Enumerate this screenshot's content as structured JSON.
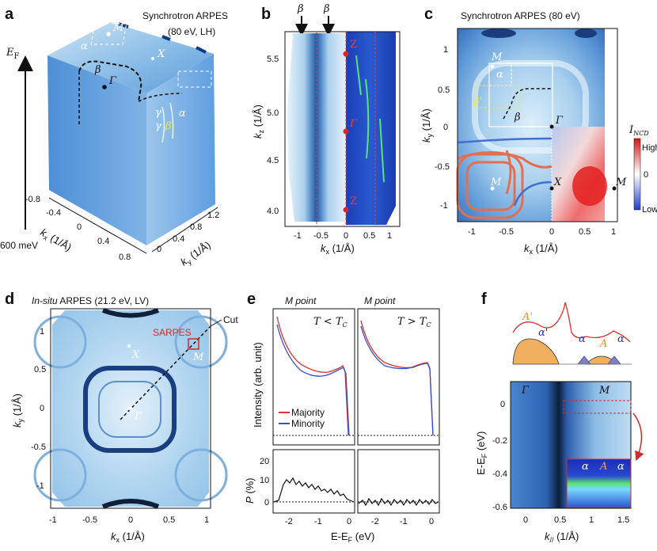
{
  "panel_letters": {
    "a": "a",
    "b": "b",
    "c": "c",
    "d": "d",
    "e": "e",
    "f": "f"
  },
  "panel_a": {
    "title": "Synchrotron ARPES",
    "subtitle": "(80 eV, LH)",
    "energy_top": "E",
    "energy_top_sub": "F",
    "energy_bottom": "600 meV",
    "kx_label": "k",
    "kx_sub": "x",
    "kx_unit": " (1/Å)",
    "ky_label": "k",
    "ky_sub": "y",
    "ky_unit": " (1/Å)",
    "kx_ticks": [
      "-0.8",
      "-0.4",
      "0",
      "0.4",
      "0.8"
    ],
    "ky_ticks": [
      "0",
      "0.4",
      "0.8",
      "1.2"
    ],
    "sym_M": "M",
    "sym_X": "X",
    "sym_G": "Γ",
    "band_alpha": "α",
    "band_beta": "β",
    "band_gamma": "γ",
    "band_gamma2": "γ",
    "band_alpha2": "α",
    "band_beta_prime": "β'"
  },
  "panel_b": {
    "top_label_1": "β",
    "top_label_2": "β",
    "ylabel": "k",
    "ylabel_sub": "z",
    "yunit": " (1/Å)",
    "xlabel": "k",
    "xlabel_sub": "x",
    "xunit": " (1/Å)",
    "yticks": [
      "5.5",
      "5.0",
      "4.5",
      "4.0"
    ],
    "xticks": [
      "-1",
      "-0.5",
      "0",
      "0.5",
      "1"
    ],
    "z_label": "Z",
    "g_label": "Γ"
  },
  "panel_c": {
    "title": "Synchrotron ARPES (80 eV)",
    "ylabel": "k",
    "ylabel_sub": "y",
    "yunit": " (1/Å)",
    "xlabel": "k",
    "xlabel_sub": "x",
    "xunit": " (1/Å)",
    "yticks": [
      "1",
      "0.5",
      "0",
      "-0.5",
      "-1"
    ],
    "xticks": [
      "-1",
      "-0.5",
      "0",
      "0.5",
      "1"
    ],
    "sym_M": "M",
    "sym_G": "Γ",
    "sym_X": "X",
    "sym_M2": "M",
    "sym_M3": "M",
    "band_alpha": "α",
    "band_beta_prime": "β'",
    "band_beta": "β",
    "cbar_title": "I",
    "cbar_title_sub": "NCD",
    "cbar_high": "High",
    "cbar_mid": "0",
    "cbar_low": "Low"
  },
  "panel_d": {
    "title_italic": "In-situ",
    "title_rest": " ARPES (21.2 eV, LV)",
    "ylabel": "k",
    "ylabel_sub": "y",
    "yunit": " (1/Å)",
    "xlabel": "k",
    "xlabel_sub": "x",
    "xunit": " (1/Å)",
    "yticks": [
      "1",
      "0.5",
      "0",
      "-0.5",
      "-1"
    ],
    "xticks": [
      "-1",
      "-0.5",
      "0",
      "0.5",
      "1"
    ],
    "sarpes": "SARPES",
    "cut": "Cut",
    "sym_X": "X",
    "sym_M": "M",
    "sym_G": "Γ"
  },
  "panel_e": {
    "left_title": "M point",
    "right_title": "M point",
    "left_cond": "T < T",
    "left_cond_sub": "C",
    "right_cond": "T > T",
    "right_cond_sub": "C",
    "ylabel_top": "Intensity (arb. unit)",
    "ylabel_bottom_i": "P",
    "ylabel_bottom": " (%)",
    "xlabel": "E-E",
    "xlabel_sub": "F",
    "xunit": " (eV)",
    "legend": [
      "Majority",
      "Minority"
    ],
    "legend_colors": [
      "#e03030",
      "#3050d0"
    ],
    "p_yticks": [
      "20",
      "10",
      "0"
    ],
    "xticks_left": [
      "-2",
      "-1",
      "0"
    ],
    "xticks_right": [
      "-2",
      "-1",
      "0"
    ]
  },
  "panel_f": {
    "peak_A_prime": "A'",
    "peak_alpha_prime": "α'",
    "peak_alpha_1": "α",
    "peak_A": "A",
    "peak_alpha_2": "α",
    "sym_G": "Γ",
    "sym_M": "M",
    "ylabel": "E-E",
    "ylabel_sub": "F",
    "yunit": " (eV)",
    "yticks": [
      "0",
      "-0.2",
      "-0.4",
      "-0.6"
    ],
    "xlabel": "k",
    "xlabel_sub": "//",
    "xunit": " (1/Å)",
    "xticks": [
      "0",
      "0.5",
      "1",
      "1.5"
    ],
    "inset_a1": "α",
    "inset_A": "A",
    "inset_a2": "α"
  },
  "colors": {
    "majority": "#e03030",
    "minority": "#3050d0",
    "accent_red": "#d62828",
    "arpes_blue": "#3a78c8"
  }
}
